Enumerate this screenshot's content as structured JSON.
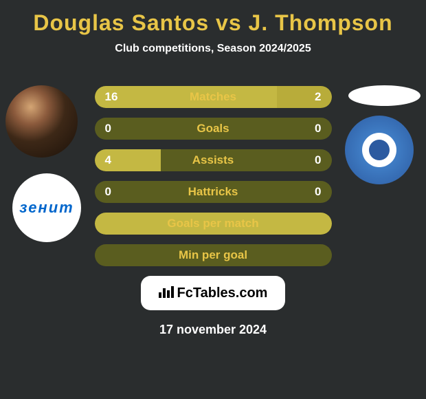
{
  "header": {
    "title": "Douglas Santos vs J. Thompson",
    "subtitle": "Club competitions, Season 2024/2025"
  },
  "stats": [
    {
      "label": "Matches",
      "left_value": "16",
      "right_value": "2",
      "left_pct": 77,
      "right_pct": 23
    },
    {
      "label": "Goals",
      "left_value": "0",
      "right_value": "0",
      "left_pct": 0,
      "right_pct": 0
    },
    {
      "label": "Assists",
      "left_value": "4",
      "right_value": "0",
      "left_pct": 28,
      "right_pct": 0
    },
    {
      "label": "Hattricks",
      "left_value": "0",
      "right_value": "0",
      "left_pct": 0,
      "right_pct": 0
    },
    {
      "label": "Goals per match",
      "left_value": "",
      "right_value": "",
      "left_pct": 100,
      "right_pct": 0
    },
    {
      "label": "Min per goal",
      "left_value": "",
      "right_value": "",
      "left_pct": 0,
      "right_pct": 0
    }
  ],
  "brand": {
    "name": "FcTables.com"
  },
  "footer": {
    "date": "17 november 2024"
  },
  "colors": {
    "background": "#2a2d2e",
    "accent": "#e8c547",
    "bar_bg": "#5a5d1f",
    "bar_fill": "#c4b843",
    "text_white": "#ffffff"
  },
  "clubs": {
    "left_label": "зенит",
    "right_club": "orenburg"
  }
}
